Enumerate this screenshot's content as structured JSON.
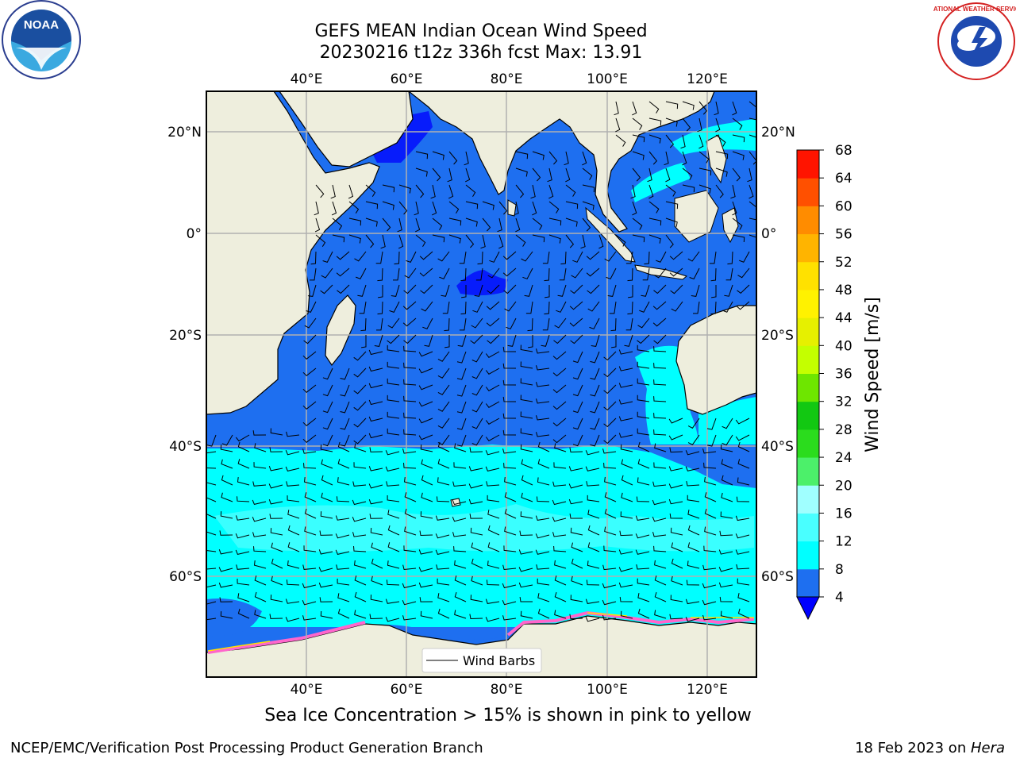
{
  "title_line1": "GEFS MEAN Indian Ocean Wind Speed",
  "title_line2": "20230216 t12z 336h fcst   Max: 13.91",
  "caption": "Sea Ice Concentration > 15% is shown in pink to yellow",
  "footer_left": "NCEP/EMC/Verification Post Processing Product Generation Branch",
  "footer_right_date": "18 Feb 2023 on ",
  "footer_right_host": "Hera",
  "legend_label": "Wind Barbs",
  "colorbar_label": "Wind Speed [m/s]",
  "logos": {
    "left": "noaa-logo",
    "right": "nws-logo",
    "left_text": "NOAA",
    "right_text": "NATIONAL WEATHER SERVICE"
  },
  "chart_data": {
    "type": "heatmap",
    "lon_ticks": [
      "40°E",
      "60°E",
      "80°E",
      "100°E",
      "120°E"
    ],
    "lat_ticks": [
      "20°N",
      "0°",
      "20°S",
      "40°S",
      "60°S"
    ],
    "lon_range": [
      20,
      130
    ],
    "lat_range": [
      -74,
      28
    ],
    "colorbar": {
      "levels": [
        4,
        8,
        12,
        16,
        20,
        24,
        28,
        32,
        36,
        40,
        44,
        48,
        52,
        56,
        60,
        64,
        68
      ],
      "colors": [
        "#1e6ff0",
        "#00ffff",
        "#49ffff",
        "#a0ffff",
        "#4cf06a",
        "#2bdc1d",
        "#12c812",
        "#6ee600",
        "#c4ff00",
        "#e6f000",
        "#fff200",
        "#ffe100",
        "#ffb400",
        "#ff8c00",
        "#ff5000",
        "#ff1400"
      ],
      "extend_min_color": "#0000ff"
    },
    "colors": {
      "land": "#eeeedd",
      "ocean_low": "#1e6ff0",
      "ocean_mid": "#00ffff",
      "ocean_high": "#49ffff",
      "ocean_dark": "#0000ff",
      "sea_ice": "#ff66cc"
    },
    "max_value": 13.91
  }
}
